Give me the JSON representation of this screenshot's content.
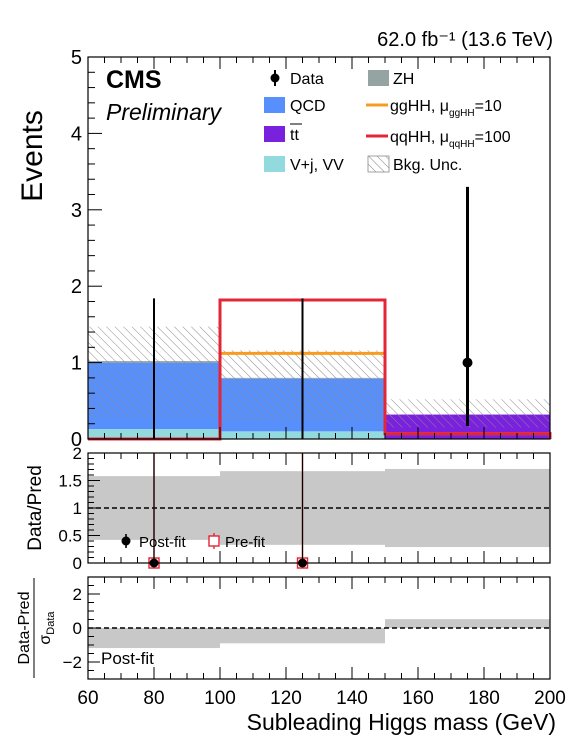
{
  "header": {
    "lumi_energy": "62.0 fb⁻¹ (13.6 TeV)",
    "experiment": "CMS",
    "status": "Preliminary"
  },
  "legend": {
    "data": "Data",
    "qcd": "QCD",
    "tt": "tt",
    "vj": "V+j, VV",
    "zh": "ZH",
    "gghh": "ggHH, μ",
    "gghh_sub": "ggHH",
    "gghh_val": "=10",
    "qqhh": "qqHH, μ",
    "qqhh_sub": "qqHH",
    "qqhh_val": "=100",
    "unc": "Bkg. Unc."
  },
  "ratio_legend": {
    "postfit": "Post-fit",
    "prefit": "Pre-fit"
  },
  "pull_label": "Post-fit",
  "colors": {
    "qcd": "#5790fc",
    "tt": "#7a21dd",
    "vj": "#92dadd",
    "zh": "#94a4a2",
    "gghh": "#f89c20",
    "qqhh": "#e42536",
    "stack_base": "#e2b8a8",
    "ratio_band": "#c8c8c8"
  },
  "chart_data": [
    {
      "type": "bar",
      "panel": "main",
      "ylabel": "Events",
      "xlim": [
        60,
        200
      ],
      "ylim": [
        0,
        5
      ],
      "yticks": [
        0,
        1,
        2,
        3,
        4,
        5
      ],
      "bins": [
        [
          60,
          100
        ],
        [
          100,
          150
        ],
        [
          150,
          200
        ]
      ],
      "series": [
        {
          "name": "V+j, VV",
          "values": [
            0.13,
            0.1,
            0.0
          ]
        },
        {
          "name": "tt",
          "values": [
            0.0,
            0.0,
            0.32
          ]
        },
        {
          "name": "QCD",
          "values": [
            0.87,
            0.69,
            0.0
          ]
        },
        {
          "name": "ZH",
          "values": [
            0.02,
            0.01,
            0.0
          ]
        },
        {
          "name": "ggHH, μ=10",
          "values": [
            0.0,
            1.12,
            0.07
          ]
        },
        {
          "name": "qqHH, μ=100",
          "values": [
            0.0,
            1.82,
            0.07
          ]
        }
      ],
      "bkg_unc": [
        [
          0.27,
          1.47
        ],
        [
          0.23,
          1.16
        ],
        [
          0.15,
          0.52
        ]
      ],
      "data": [
        {
          "x": 80,
          "y": 0,
          "err_up": 1.84
        },
        {
          "x": 125,
          "y": 0,
          "err_up": 1.84
        },
        {
          "x": 175,
          "y": 1,
          "err_low": 0.83,
          "err_up": 2.3
        }
      ]
    },
    {
      "type": "scatter",
      "panel": "ratio",
      "ylabel": "Data/Pred",
      "xlim": [
        60,
        200
      ],
      "ylim": [
        0,
        2
      ],
      "yticks": [
        0,
        0.5,
        1,
        1.5,
        2
      ],
      "reference_line": 1,
      "band": [
        [
          60,
          100,
          0.42,
          1.58
        ],
        [
          100,
          150,
          0.33,
          1.67
        ],
        [
          150,
          200,
          0.29,
          1.71
        ]
      ],
      "postfit": [
        {
          "x": 80,
          "y": 0,
          "err_up": 2.1
        },
        {
          "x": 125,
          "y": 0,
          "err_up": 2.1
        }
      ],
      "prefit": [
        {
          "x": 80,
          "y": 0,
          "err_up": 2.1
        },
        {
          "x": 125,
          "y": 0,
          "err_up": 2.1
        }
      ]
    },
    {
      "type": "bar",
      "panel": "pull",
      "ylabel": "Data-Pred / σData",
      "xlabel": "Subleading Higgs mass (GeV)",
      "xlim": [
        60,
        200
      ],
      "ylim": [
        -3,
        3
      ],
      "yticks": [
        -2,
        0,
        2
      ],
      "xticks": [
        60,
        80,
        100,
        120,
        140,
        160,
        180,
        200
      ],
      "reference_line": 0,
      "values": [
        [
          60,
          100,
          -1.18
        ],
        [
          100,
          150,
          -0.9
        ],
        [
          150,
          200,
          0.52
        ]
      ]
    }
  ]
}
